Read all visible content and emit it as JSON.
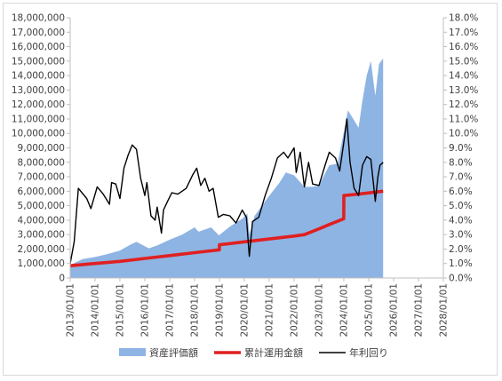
{
  "chart_data": {
    "type": "area",
    "title": "",
    "xlabel": "",
    "ylabel": "",
    "x_axis": {
      "type": "date",
      "range": [
        "2013-01-01",
        "2028-01-01"
      ],
      "tick_labels": [
        "2013/01/01",
        "2014/01/01",
        "2015/01/01",
        "2016/01/01",
        "2017/01/01",
        "2018/01/01",
        "2019/01/01",
        "2020/01/01",
        "2021/01/01",
        "2022/01/01",
        "2023/01/01",
        "2024/01/01",
        "2025/01/01",
        "2026/01/01",
        "2027/01/01",
        "2028/01/01"
      ]
    },
    "y_axis_left": {
      "range": [
        0,
        18000000
      ],
      "tick_labels": [
        "0",
        "1,000,000",
        "2,000,000",
        "3,000,000",
        "4,000,000",
        "5,000,000",
        "6,000,000",
        "7,000,000",
        "8,000,000",
        "9,000,000",
        "10,000,000",
        "11,000,000",
        "12,000,000",
        "13,000,000",
        "14,000,000",
        "15,000,000",
        "16,000,000",
        "17,000,000",
        "18,000,000"
      ]
    },
    "y_axis_right": {
      "range": [
        0,
        18
      ],
      "unit": "%",
      "tick_labels": [
        "0.0%",
        "1.0%",
        "2.0%",
        "3.0%",
        "4.0%",
        "5.0%",
        "6.0%",
        "7.0%",
        "8.0%",
        "9.0%",
        "10.0%",
        "11.0%",
        "12.0%",
        "13.0%",
        "14.0%",
        "15.0%",
        "16.0%",
        "17.0%",
        "18.0%"
      ]
    },
    "grid": false,
    "legend_position": "bottom",
    "series": [
      {
        "name": "資産評価額",
        "kind": "area",
        "axis": "left",
        "color": "#8eb4e3",
        "points": [
          [
            "2013-01-01",
            900000
          ],
          [
            "2013-07-01",
            1300000
          ],
          [
            "2014-01-01",
            1450000
          ],
          [
            "2014-07-01",
            1650000
          ],
          [
            "2015-01-01",
            1900000
          ],
          [
            "2015-06-01",
            2300000
          ],
          [
            "2015-09-01",
            2500000
          ],
          [
            "2016-01-01",
            2200000
          ],
          [
            "2016-03-01",
            2050000
          ],
          [
            "2016-07-01",
            2250000
          ],
          [
            "2017-01-01",
            2650000
          ],
          [
            "2017-07-01",
            3000000
          ],
          [
            "2018-01-01",
            3500000
          ],
          [
            "2018-03-01",
            3200000
          ],
          [
            "2018-09-01",
            3500000
          ],
          [
            "2018-12-25",
            2950000
          ],
          [
            "2019-06-01",
            3550000
          ],
          [
            "2019-12-01",
            4100000
          ],
          [
            "2020-02-15",
            4450000
          ],
          [
            "2020-03-20",
            3000000
          ],
          [
            "2020-06-01",
            4300000
          ],
          [
            "2020-12-01",
            5500000
          ],
          [
            "2021-06-01",
            6600000
          ],
          [
            "2021-09-01",
            7300000
          ],
          [
            "2022-01-01",
            7100000
          ],
          [
            "2022-06-01",
            6300000
          ],
          [
            "2022-10-01",
            6300000
          ],
          [
            "2023-01-01",
            6400000
          ],
          [
            "2023-06-01",
            7800000
          ],
          [
            "2023-10-01",
            7900000
          ],
          [
            "2024-01-01",
            10100000
          ],
          [
            "2024-03-01",
            11600000
          ],
          [
            "2024-08-05",
            10400000
          ],
          [
            "2024-10-01",
            12300000
          ],
          [
            "2024-12-01",
            14000000
          ],
          [
            "2025-02-01",
            15000000
          ],
          [
            "2025-04-07",
            12600000
          ],
          [
            "2025-06-01",
            14800000
          ],
          [
            "2025-07-31",
            15200000
          ]
        ]
      },
      {
        "name": "累計運用金額",
        "kind": "line",
        "axis": "left",
        "color": "#e02020",
        "points": [
          [
            "2013-01-01",
            850000
          ],
          [
            "2014-01-01",
            1000000
          ],
          [
            "2015-01-01",
            1150000
          ],
          [
            "2016-01-01",
            1350000
          ],
          [
            "2017-01-01",
            1550000
          ],
          [
            "2018-01-01",
            1750000
          ],
          [
            "2018-12-31",
            1950000
          ],
          [
            "2019-01-01",
            2300000
          ],
          [
            "2020-01-01",
            2500000
          ],
          [
            "2021-01-01",
            2700000
          ],
          [
            "2022-01-01",
            2900000
          ],
          [
            "2022-06-01",
            3000000
          ],
          [
            "2023-01-01",
            3400000
          ],
          [
            "2023-06-01",
            3700000
          ],
          [
            "2023-12-31",
            4100000
          ],
          [
            "2024-01-01",
            5700000
          ],
          [
            "2024-08-01",
            5800000
          ],
          [
            "2025-07-31",
            6000000
          ]
        ]
      },
      {
        "name": "年利回り",
        "kind": "line",
        "axis": "right",
        "unit": "%",
        "color": "#000000",
        "points": [
          [
            "2013-01-01",
            1.0
          ],
          [
            "2013-03-01",
            2.5
          ],
          [
            "2013-05-01",
            6.2
          ],
          [
            "2013-09-01",
            5.5
          ],
          [
            "2013-11-01",
            4.8
          ],
          [
            "2014-02-01",
            6.3
          ],
          [
            "2014-05-01",
            5.8
          ],
          [
            "2014-08-01",
            5.1
          ],
          [
            "2014-09-01",
            6.6
          ],
          [
            "2014-11-01",
            6.5
          ],
          [
            "2015-01-01",
            5.5
          ],
          [
            "2015-03-01",
            7.6
          ],
          [
            "2015-05-01",
            8.5
          ],
          [
            "2015-07-01",
            9.2
          ],
          [
            "2015-09-01",
            8.9
          ],
          [
            "2015-11-01",
            6.9
          ],
          [
            "2016-01-01",
            5.7
          ],
          [
            "2016-02-01",
            6.6
          ],
          [
            "2016-04-01",
            4.3
          ],
          [
            "2016-06-01",
            4.0
          ],
          [
            "2016-07-01",
            4.9
          ],
          [
            "2016-09-01",
            3.1
          ],
          [
            "2016-10-01",
            4.7
          ],
          [
            "2016-12-01",
            5.3
          ],
          [
            "2017-02-01",
            5.9
          ],
          [
            "2017-05-01",
            5.8
          ],
          [
            "2017-09-01",
            6.2
          ],
          [
            "2017-12-01",
            7.1
          ],
          [
            "2018-02-01",
            7.6
          ],
          [
            "2018-04-01",
            6.4
          ],
          [
            "2018-06-01",
            6.9
          ],
          [
            "2018-08-01",
            6.0
          ],
          [
            "2018-10-01",
            6.2
          ],
          [
            "2018-12-15",
            4.2
          ],
          [
            "2019-03-01",
            4.4
          ],
          [
            "2019-06-01",
            4.3
          ],
          [
            "2019-09-01",
            3.8
          ],
          [
            "2019-12-01",
            4.7
          ],
          [
            "2020-02-01",
            4.2
          ],
          [
            "2020-03-15",
            1.5
          ],
          [
            "2020-05-01",
            3.9
          ],
          [
            "2020-08-01",
            4.2
          ],
          [
            "2020-11-01",
            5.7
          ],
          [
            "2021-02-01",
            6.9
          ],
          [
            "2021-05-01",
            8.3
          ],
          [
            "2021-08-01",
            8.7
          ],
          [
            "2021-10-01",
            8.3
          ],
          [
            "2022-01-01",
            9.0
          ],
          [
            "2022-02-01",
            7.3
          ],
          [
            "2022-04-01",
            8.7
          ],
          [
            "2022-06-01",
            6.3
          ],
          [
            "2022-08-01",
            8.0
          ],
          [
            "2022-10-01",
            6.5
          ],
          [
            "2023-01-01",
            6.4
          ],
          [
            "2023-04-01",
            7.8
          ],
          [
            "2023-06-01",
            8.7
          ],
          [
            "2023-09-01",
            8.3
          ],
          [
            "2023-11-01",
            7.4
          ],
          [
            "2024-01-01",
            9.4
          ],
          [
            "2024-02-15",
            11.0
          ],
          [
            "2024-04-01",
            8.0
          ],
          [
            "2024-06-01",
            6.2
          ],
          [
            "2024-08-05",
            5.7
          ],
          [
            "2024-10-01",
            7.8
          ],
          [
            "2024-12-01",
            8.4
          ],
          [
            "2025-02-01",
            8.2
          ],
          [
            "2025-04-07",
            5.3
          ],
          [
            "2025-05-15",
            7.0
          ],
          [
            "2025-06-15",
            7.8
          ],
          [
            "2025-07-31",
            8.0
          ]
        ]
      }
    ]
  }
}
